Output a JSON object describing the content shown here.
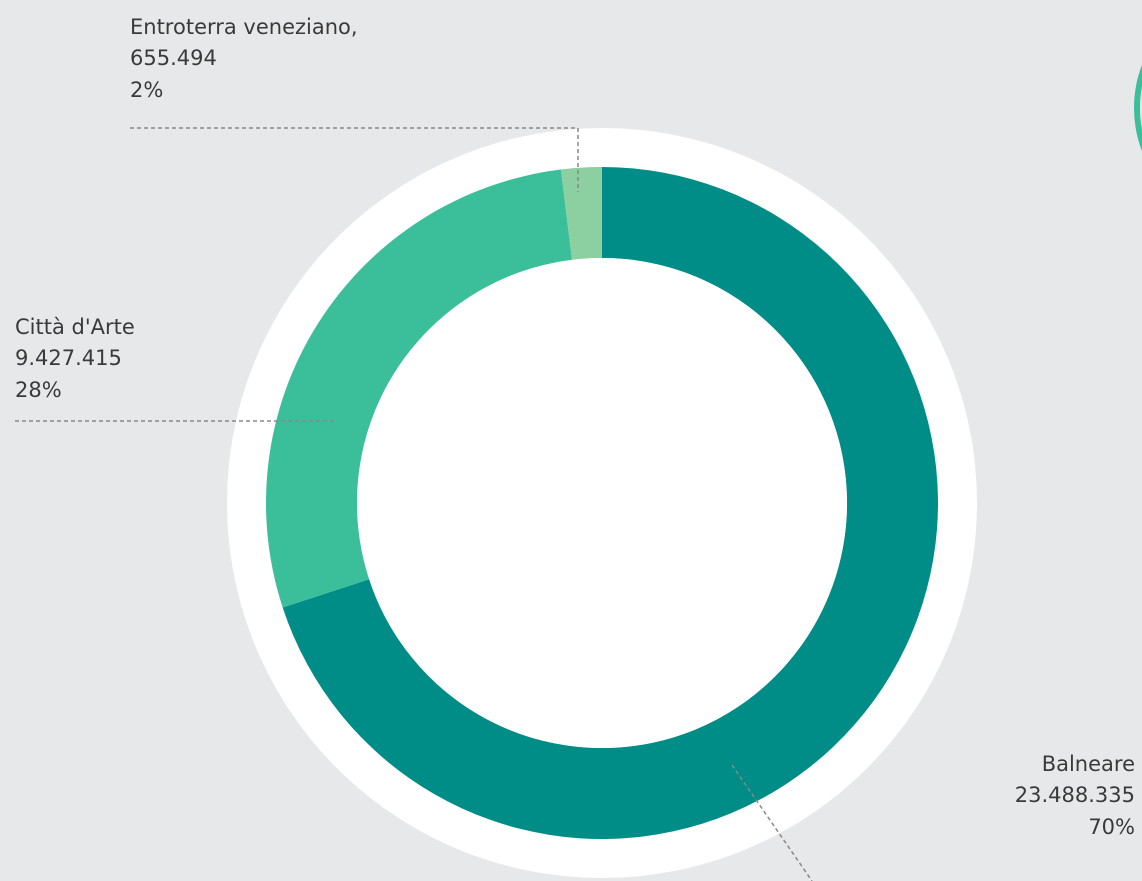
{
  "chart_data": {
    "type": "donut",
    "categories": [
      "Balneare",
      "Città d'Arte",
      "Entroterra veneziano,"
    ],
    "values": [
      23488335,
      9427415,
      655494
    ],
    "value_labels": [
      "23.488.335",
      "9.427.415",
      "655.494"
    ],
    "percents": [
      70,
      28,
      2
    ],
    "percent_labels": [
      "70%",
      "28%",
      "2%"
    ],
    "colors": [
      "#008d87",
      "#3bbf9b",
      "#8ccfa1"
    ]
  }
}
